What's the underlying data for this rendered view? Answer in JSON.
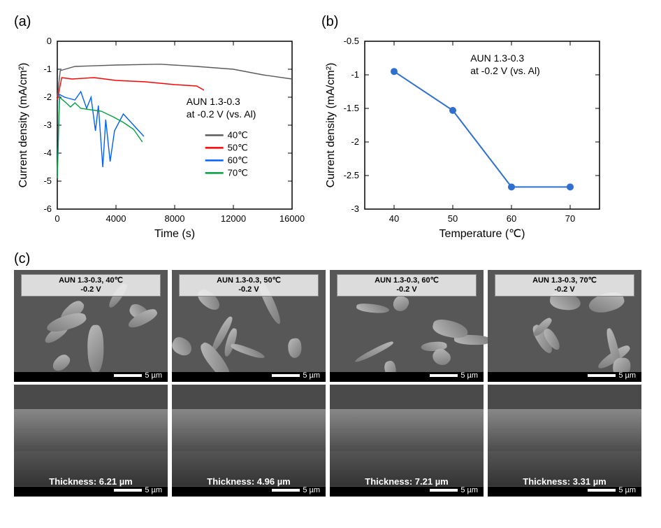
{
  "panel_a": {
    "label": "(a)",
    "type": "line",
    "xlabel": "Time (s)",
    "ylabel": "Current density (mA/cm²)",
    "xlim": [
      0,
      16000
    ],
    "ylim": [
      -6,
      0
    ],
    "xticks": [
      0,
      4000,
      8000,
      12000,
      16000
    ],
    "yticks": [
      -6,
      -5,
      -4,
      -3,
      -2,
      -1,
      0
    ],
    "annotation": "AUN 1.3-0.3\nat -0.2 V (vs. Al)",
    "annotation_fontsize": 14,
    "label_fontsize": 16,
    "tick_fontsize": 13,
    "line_width": 1.4,
    "background_color": "#ffffff",
    "axis_color": "#000000",
    "series": [
      {
        "name": "40℃",
        "color": "#5a5a5a",
        "points": [
          [
            0,
            -2.0
          ],
          [
            200,
            -1.05
          ],
          [
            1200,
            -0.9
          ],
          [
            4000,
            -0.85
          ],
          [
            7000,
            -0.82
          ],
          [
            9500,
            -0.9
          ],
          [
            12000,
            -1.0
          ],
          [
            14000,
            -1.2
          ],
          [
            16000,
            -1.35
          ]
        ]
      },
      {
        "name": "50℃",
        "color": "#ff0000",
        "points": [
          [
            0,
            -2.1
          ],
          [
            300,
            -1.3
          ],
          [
            1000,
            -1.35
          ],
          [
            2500,
            -1.3
          ],
          [
            4000,
            -1.4
          ],
          [
            6000,
            -1.45
          ],
          [
            8000,
            -1.55
          ],
          [
            9500,
            -1.6
          ],
          [
            10000,
            -1.75
          ]
        ]
      },
      {
        "name": "60℃",
        "color": "#0060ff",
        "points": [
          [
            0,
            -4.8
          ],
          [
            150,
            -1.9
          ],
          [
            500,
            -2.0
          ],
          [
            1200,
            -2.1
          ],
          [
            1600,
            -1.8
          ],
          [
            2000,
            -2.4
          ],
          [
            2300,
            -2.0
          ],
          [
            2600,
            -3.2
          ],
          [
            2800,
            -2.3
          ],
          [
            3100,
            -4.5
          ],
          [
            3300,
            -2.8
          ],
          [
            3600,
            -4.3
          ],
          [
            3900,
            -3.2
          ],
          [
            4500,
            -2.6
          ],
          [
            5200,
            -3.0
          ],
          [
            5900,
            -3.4
          ]
        ]
      },
      {
        "name": "70℃",
        "color": "#00a040",
        "points": [
          [
            0,
            -4.9
          ],
          [
            150,
            -2.0
          ],
          [
            600,
            -2.2
          ],
          [
            900,
            -2.35
          ],
          [
            1200,
            -2.2
          ],
          [
            1600,
            -2.4
          ],
          [
            2300,
            -2.45
          ],
          [
            3000,
            -2.5
          ],
          [
            3800,
            -2.7
          ],
          [
            4500,
            -2.9
          ],
          [
            5200,
            -3.15
          ],
          [
            5800,
            -3.6
          ]
        ]
      }
    ],
    "legend_title": ""
  },
  "panel_b": {
    "label": "(b)",
    "type": "line-marker",
    "xlabel": "Temperature (℃)",
    "ylabel": "Current density (mA/cm²)",
    "xlim": [
      35,
      75
    ],
    "ylim": [
      -3.0,
      -0.5
    ],
    "xticks": [
      40,
      50,
      60,
      70
    ],
    "yticks": [
      -3.0,
      -2.5,
      -2.0,
      -1.5,
      -1.0,
      -0.5
    ],
    "annotation": "AUN 1.3-0.3\nat -0.2 V (vs. Al)",
    "annotation_fontsize": 14,
    "label_fontsize": 16,
    "tick_fontsize": 13,
    "line_color": "#2f6fd0",
    "marker_color": "#2f6fd0",
    "marker_size": 10,
    "line_width": 2,
    "background_color": "#ffffff",
    "data": [
      [
        40,
        -0.95
      ],
      [
        50,
        -1.53
      ],
      [
        60,
        -2.67
      ],
      [
        70,
        -2.67
      ]
    ]
  },
  "panel_c": {
    "label": "(c)",
    "scale_text": "5 µm",
    "label_bg": "#e8e8e8",
    "label_text_color": "#000000",
    "thickness_text_color": "#ffffff",
    "fontsize_small": 11,
    "cols": [
      {
        "cond_line1": "AUN 1.3-0.3, 40℃",
        "cond_line2": "-0.2 V",
        "thickness": "Thickness: 6.21 µm"
      },
      {
        "cond_line1": "AUN 1.3-0.3, 50℃",
        "cond_line2": "-0.2 V",
        "thickness": "Thickness: 4.96 µm"
      },
      {
        "cond_line1": "AUN 1.3-0.3, 60℃",
        "cond_line2": "-0.2 V",
        "thickness": "Thickness: 7.21 µm"
      },
      {
        "cond_line1": "AUN 1.3-0.3, 70℃",
        "cond_line2": "-0.2 V",
        "thickness": "Thickness: 3.31 µm"
      }
    ]
  }
}
